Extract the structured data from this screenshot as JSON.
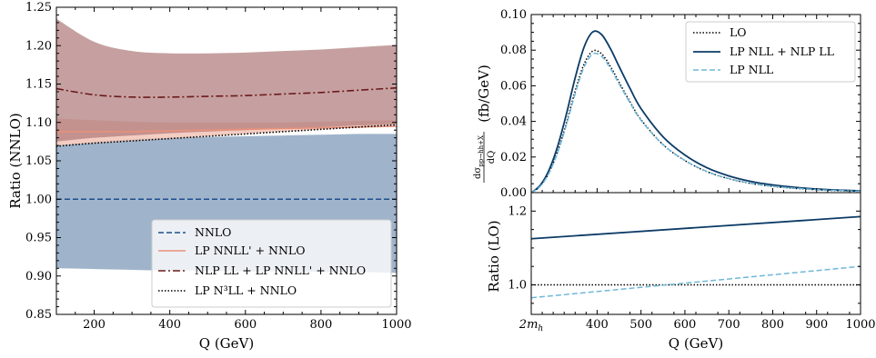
{
  "figure": {
    "colors": {
      "nnlo": "#1f4e8c",
      "nnlo_band": "#9fb4cb",
      "lp_nnll": "#e8907a",
      "lp_nnll_band": "#f2c4b7",
      "nlp_ll": "#6b1a1a",
      "nlp_band": "#b07c7c",
      "n3ll": "#000000",
      "lp_nll": "#6fb8d8",
      "lp_nll_nlp": "#0c3b66"
    }
  },
  "chart_data": [
    {
      "type": "line",
      "ylabel": "Ratio (NNLO)",
      "xlabel": "Q (GeV)",
      "xlim": [
        100,
        1000
      ],
      "ylim": [
        0.85,
        1.25
      ],
      "xticks": [
        "200",
        "400",
        "600",
        "800",
        "1000"
      ],
      "xtick_values": [
        200,
        400,
        600,
        800,
        1000
      ],
      "yticks": [
        "0.85",
        "0.90",
        "0.95",
        "1.00",
        "1.05",
        "1.10",
        "1.15",
        "1.20",
        "1.25"
      ],
      "ytick_values": [
        0.85,
        0.9,
        0.95,
        1.0,
        1.05,
        1.1,
        1.15,
        1.2,
        1.25
      ],
      "legend_position": "bottom-right",
      "legend": [
        "NNLO",
        "LP NNLL' + NNLO",
        "NLP LL + LP NNLL' + NNLO",
        "LP N³LL + NNLO"
      ],
      "x": [
        100,
        200,
        300,
        400,
        500,
        600,
        700,
        800,
        900,
        1000
      ],
      "bands": [
        {
          "upper": [
            1.07,
            1.075,
            1.078,
            1.08,
            1.081,
            1.082,
            1.083,
            1.084,
            1.085,
            1.085
          ],
          "lower": [
            0.91,
            0.909,
            0.908,
            0.907,
            0.907,
            0.906,
            0.906,
            0.905,
            0.905,
            0.904
          ]
        },
        {
          "upper": [
            1.105,
            1.103,
            1.101,
            1.1,
            1.1,
            1.1,
            1.1,
            1.101,
            1.102,
            1.103
          ],
          "lower": [
            1.07,
            1.073,
            1.076,
            1.079,
            1.082,
            1.085,
            1.088,
            1.091,
            1.094,
            1.097
          ]
        },
        {
          "upper": [
            1.235,
            1.205,
            1.193,
            1.19,
            1.19,
            1.191,
            1.193,
            1.195,
            1.198,
            1.201
          ],
          "lower": [
            1.075,
            1.08,
            1.083,
            1.086,
            1.088,
            1.09,
            1.092,
            1.094,
            1.096,
            1.098
          ]
        }
      ],
      "series": [
        {
          "values": [
            1.0,
            1.0,
            1.0,
            1.0,
            1.0,
            1.0,
            1.0,
            1.0,
            1.0,
            1.0
          ]
        },
        {
          "values": [
            1.088,
            1.088,
            1.088,
            1.089,
            1.09,
            1.091,
            1.092,
            1.093,
            1.094,
            1.095
          ]
        },
        {
          "values": [
            1.144,
            1.136,
            1.133,
            1.133,
            1.134,
            1.135,
            1.137,
            1.139,
            1.142,
            1.145
          ]
        },
        {
          "values": [
            1.069,
            1.073,
            1.076,
            1.079,
            1.082,
            1.085,
            1.088,
            1.091,
            1.094,
            1.097
          ]
        }
      ]
    },
    {
      "type": "line",
      "ylabel_main": "(fb/GeV)",
      "ylabel_ratio": "Ratio (LO)",
      "xlabel": "Q (GeV)",
      "xlim": [
        250,
        1000
      ],
      "ylim": [
        0,
        0.1
      ],
      "xticks": [
        "2m_h",
        "400",
        "500",
        "600",
        "700",
        "800",
        "900",
        "1000"
      ],
      "xtick_values": [
        250,
        400,
        500,
        600,
        700,
        800,
        900,
        1000
      ],
      "yticks": [
        "0.00",
        "0.02",
        "0.04",
        "0.06",
        "0.08",
        "0.10"
      ],
      "ytick_values": [
        0.0,
        0.02,
        0.04,
        0.06,
        0.08,
        0.1
      ],
      "ratio_ylim": [
        0.92,
        1.25
      ],
      "ratio_yticks": [
        "1.0",
        "1.2"
      ],
      "ratio_ytick_values": [
        1.0,
        1.2
      ],
      "legend_position": "top-right",
      "legend": [
        "LO",
        "LP NLL + NLP LL",
        "LP NLL"
      ],
      "x": [
        250,
        270,
        290,
        310,
        330,
        350,
        370,
        390,
        410,
        430,
        450,
        475,
        500,
        550,
        600,
        650,
        700,
        750,
        800,
        850,
        900,
        950,
        1000
      ],
      "series": [
        {
          "values": [
            0.0,
            0.0035,
            0.011,
            0.023,
            0.039,
            0.057,
            0.072,
            0.0795,
            0.078,
            0.071,
            0.062,
            0.051,
            0.041,
            0.027,
            0.018,
            0.0118,
            0.0078,
            0.0052,
            0.0035,
            0.0024,
            0.0016,
            0.0011,
            0.0008
          ]
        },
        {
          "values": [
            0.0,
            0.004,
            0.0124,
            0.0259,
            0.044,
            0.0644,
            0.0815,
            0.0902,
            0.0888,
            0.081,
            0.0709,
            0.0585,
            0.0472,
            0.0314,
            0.0211,
            0.014,
            0.0094,
            0.0063,
            0.0043,
            0.003,
            0.002,
            0.0014,
            0.001
          ]
        },
        {
          "values": [
            0.0,
            0.0034,
            0.0107,
            0.0224,
            0.038,
            0.0555,
            0.0703,
            0.0778,
            0.0766,
            0.0699,
            0.0611,
            0.0504,
            0.0406,
            0.027,
            0.0181,
            0.0119,
            0.0079,
            0.0053,
            0.0036,
            0.0025,
            0.0017,
            0.0012,
            0.0008
          ]
        }
      ],
      "ratio_x": [
        250,
        1000
      ],
      "ratio_series": [
        {
          "values": [
            1.0,
            1.0
          ]
        },
        {
          "values": [
            1.125,
            1.185
          ]
        },
        {
          "values": [
            0.965,
            1.05
          ]
        }
      ]
    }
  ]
}
